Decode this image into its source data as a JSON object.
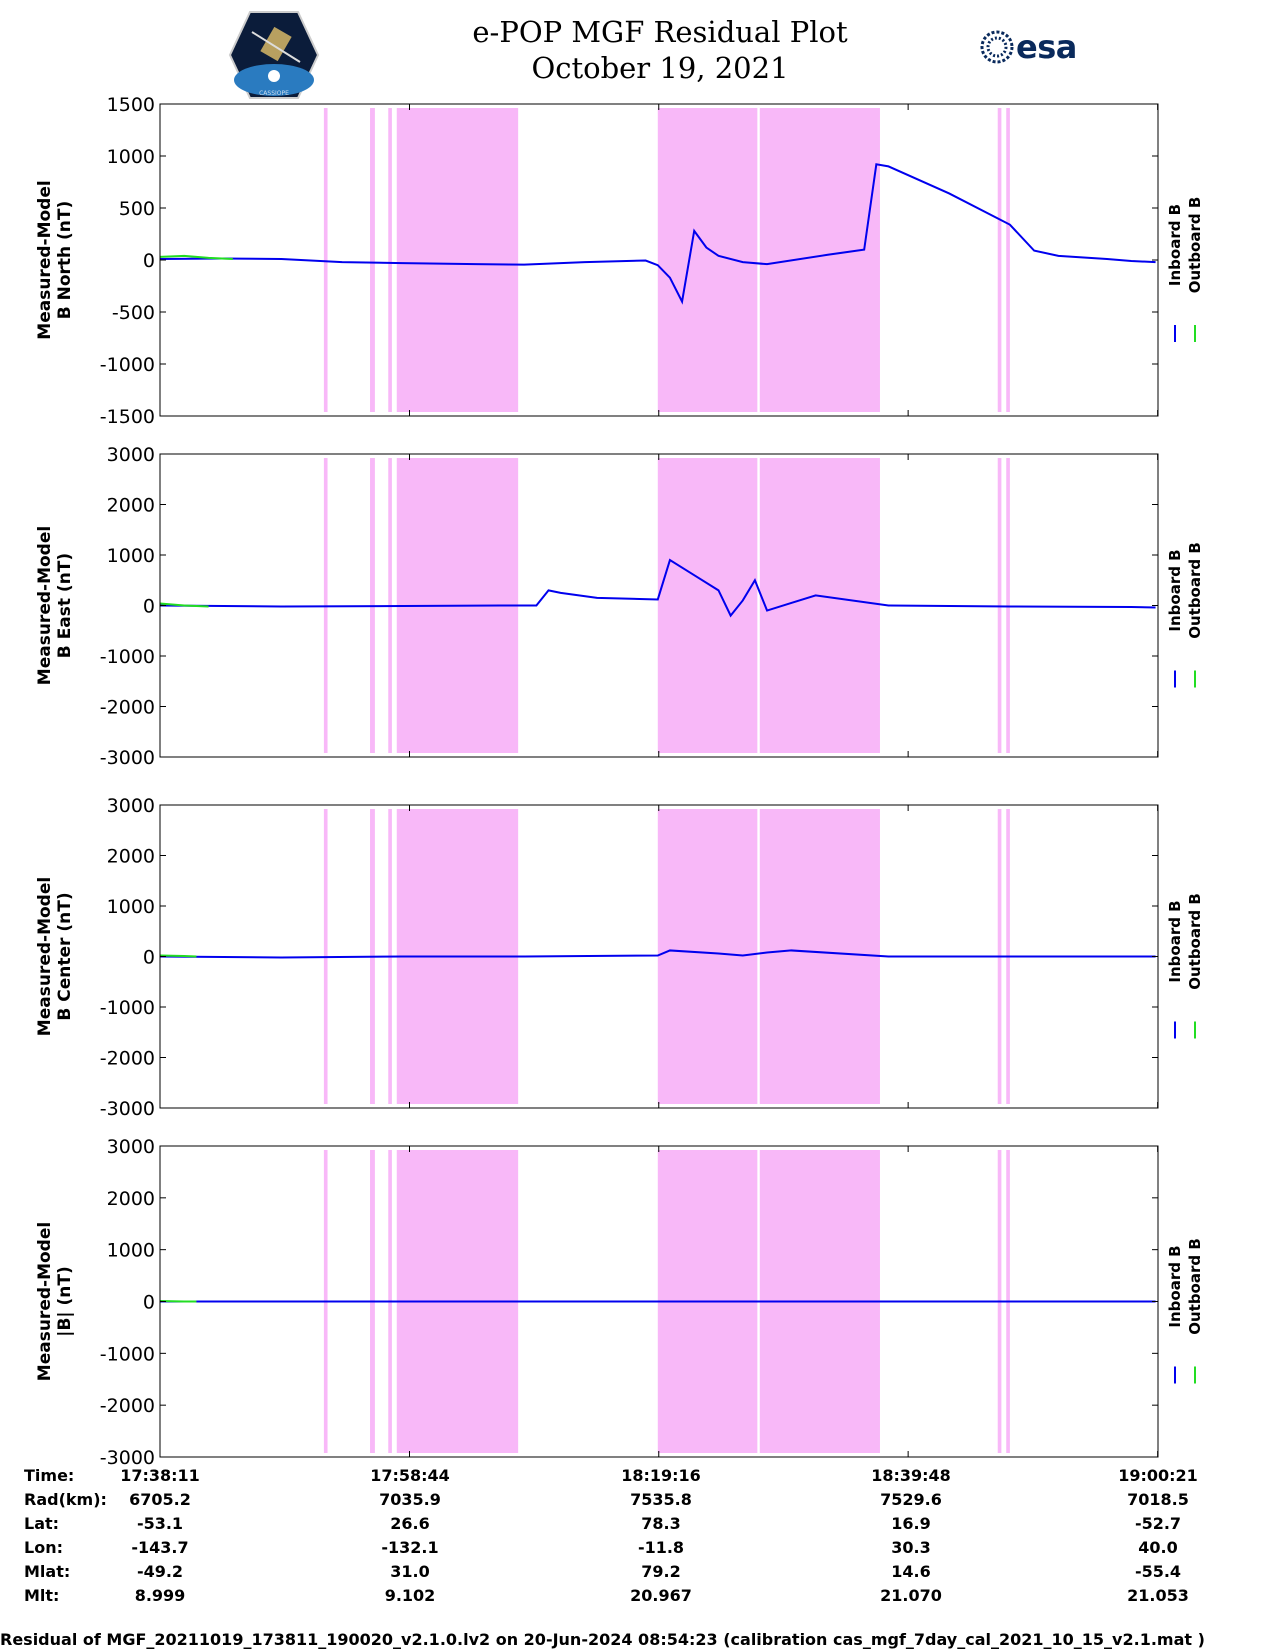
{
  "header": {
    "title_line1": "e-POP MGF Residual Plot",
    "title_line2": "October 19, 2021",
    "left_logo_text": "CASSIOPE",
    "right_logo_text": "esa"
  },
  "colors": {
    "inboard": "#0000ee",
    "outboard": "#22dd22",
    "shade": "#f8b8f8"
  },
  "chart_data": [
    {
      "type": "line",
      "title": "",
      "ylabel": "Measured-Model\nB North (nT)",
      "ylim": [
        -1500,
        1500
      ],
      "yticks": [
        1500,
        1000,
        500,
        0,
        -500,
        -1000,
        -1500
      ],
      "legend": [
        "Inboard B",
        "Outboard B"
      ],
      "legend_placement": "right",
      "xlim_minutes": [
        0,
        82.2
      ],
      "series": [
        {
          "name": "Inboard B",
          "x": [
            0,
            5,
            10,
            15,
            20,
            26,
            30,
            35,
            40,
            41,
            42,
            43,
            44,
            45,
            46,
            48,
            50,
            55,
            58,
            59,
            60,
            65,
            70,
            72,
            74,
            78,
            80,
            82
          ],
          "y": [
            10,
            15,
            10,
            -20,
            -30,
            -40,
            -45,
            -20,
            -5,
            -50,
            -170,
            -400,
            280,
            120,
            40,
            -20,
            -40,
            50,
            100,
            920,
            900,
            640,
            340,
            90,
            40,
            10,
            -10,
            -20
          ]
        },
        {
          "name": "Outboard B",
          "x": [
            0,
            2,
            4,
            6
          ],
          "y": [
            30,
            40,
            20,
            10
          ]
        }
      ],
      "bands_minutes": [
        [
          13.5,
          13.8
        ],
        [
          17.3,
          17.7
        ],
        [
          18.8,
          19.1
        ],
        [
          19.5,
          19.8
        ],
        [
          19.6,
          29.5
        ],
        [
          41.0,
          49.2
        ],
        [
          49.4,
          59.3
        ],
        [
          69.0,
          69.3
        ],
        [
          69.7,
          70.0
        ]
      ]
    },
    {
      "type": "line",
      "title": "",
      "ylabel": "Measured-Model\nB East (nT)",
      "ylim": [
        -3000,
        3000
      ],
      "yticks": [
        3000,
        2000,
        1000,
        0,
        -1000,
        -2000,
        -3000
      ],
      "legend": [
        "Inboard B",
        "Outboard B"
      ],
      "legend_placement": "right",
      "xlim_minutes": [
        0,
        82.2
      ],
      "series": [
        {
          "name": "Inboard B",
          "x": [
            0,
            10,
            20,
            28,
            31,
            32,
            33,
            36,
            41,
            42,
            44,
            46,
            47,
            48,
            49,
            50,
            52,
            54,
            60,
            70,
            80,
            82
          ],
          "y": [
            0,
            -20,
            -10,
            0,
            0,
            300,
            250,
            150,
            120,
            900,
            600,
            300,
            -200,
            100,
            500,
            -100,
            50,
            200,
            0,
            -20,
            -30,
            -40
          ]
        },
        {
          "name": "Outboard B",
          "x": [
            0,
            2,
            4
          ],
          "y": [
            40,
            0,
            -20
          ]
        }
      ],
      "bands_minutes": [
        [
          13.5,
          13.8
        ],
        [
          17.3,
          17.7
        ],
        [
          18.8,
          19.1
        ],
        [
          19.5,
          19.8
        ],
        [
          19.6,
          29.5
        ],
        [
          41.0,
          49.2
        ],
        [
          49.4,
          59.3
        ],
        [
          69.0,
          69.3
        ],
        [
          69.7,
          70.0
        ]
      ]
    },
    {
      "type": "line",
      "title": "",
      "ylabel": "Measured-Model\nB Center (nT)",
      "ylim": [
        -3000,
        3000
      ],
      "yticks": [
        3000,
        2000,
        1000,
        0,
        -1000,
        -2000,
        -3000
      ],
      "legend": [
        "Inboard B",
        "Outboard B"
      ],
      "legend_placement": "right",
      "xlim_minutes": [
        0,
        82.2
      ],
      "series": [
        {
          "name": "Inboard B",
          "x": [
            0,
            10,
            20,
            29,
            30,
            41,
            42,
            46,
            48,
            50,
            52,
            60,
            70,
            82
          ],
          "y": [
            0,
            -20,
            0,
            0,
            0,
            20,
            120,
            60,
            20,
            80,
            120,
            0,
            0,
            0
          ]
        },
        {
          "name": "Outboard B",
          "x": [
            0,
            2,
            3
          ],
          "y": [
            20,
            10,
            0
          ]
        }
      ],
      "bands_minutes": [
        [
          13.5,
          13.8
        ],
        [
          17.3,
          17.7
        ],
        [
          18.8,
          19.1
        ],
        [
          19.5,
          19.8
        ],
        [
          19.6,
          29.5
        ],
        [
          41.0,
          49.2
        ],
        [
          49.4,
          59.3
        ],
        [
          69.0,
          69.3
        ],
        [
          69.7,
          70.0
        ]
      ]
    },
    {
      "type": "line",
      "title": "",
      "ylabel": "Measured-Model\n|B| (nT)",
      "ylim": [
        -3000,
        3000
      ],
      "yticks": [
        3000,
        2000,
        1000,
        0,
        -1000,
        -2000,
        -3000
      ],
      "legend": [
        "Inboard B",
        "Outboard B"
      ],
      "legend_placement": "right",
      "xlim_minutes": [
        0,
        82.2
      ],
      "series": [
        {
          "name": "Inboard B",
          "x": [
            0,
            10,
            20,
            30,
            41,
            50,
            60,
            70,
            82
          ],
          "y": [
            0,
            0,
            0,
            0,
            0,
            0,
            0,
            0,
            0
          ]
        },
        {
          "name": "Outboard B",
          "x": [
            0,
            2,
            3
          ],
          "y": [
            10,
            0,
            0
          ]
        }
      ],
      "bands_minutes": [
        [
          13.5,
          13.8
        ],
        [
          17.3,
          17.7
        ],
        [
          18.8,
          19.1
        ],
        [
          19.5,
          19.8
        ],
        [
          19.6,
          29.5
        ],
        [
          41.0,
          49.2
        ],
        [
          49.4,
          59.3
        ],
        [
          69.0,
          69.3
        ],
        [
          69.7,
          70.0
        ]
      ]
    }
  ],
  "ephemeris": {
    "rows": [
      {
        "label": "Time:",
        "values": [
          "17:38:11",
          "17:58:44",
          "18:19:16",
          "18:39:48",
          "19:00:21"
        ]
      },
      {
        "label": "Rad(km):",
        "values": [
          "6705.2",
          "7035.9",
          "7535.8",
          "7529.6",
          "7018.5"
        ]
      },
      {
        "label": "Lat:",
        "values": [
          "-53.1",
          "26.6",
          "78.3",
          "16.9",
          "-52.7"
        ]
      },
      {
        "label": "Lon:",
        "values": [
          "-143.7",
          "-132.1",
          "-11.8",
          "30.3",
          "40.0"
        ]
      },
      {
        "label": "Mlat:",
        "values": [
          "-49.2",
          "31.0",
          "79.2",
          "14.6",
          "-55.4"
        ]
      },
      {
        "label": "Mlt:",
        "values": [
          "8.999",
          "9.102",
          "20.967",
          "21.070",
          "21.053"
        ]
      }
    ]
  },
  "footer": {
    "text": "Residual of MGF_20211019_173811_190020_v2.1.0.lv2 on 20-Jun-2024 08:54:23 (calibration cas_mgf_7day_cal_2021_10_15_v2.1.mat )"
  }
}
